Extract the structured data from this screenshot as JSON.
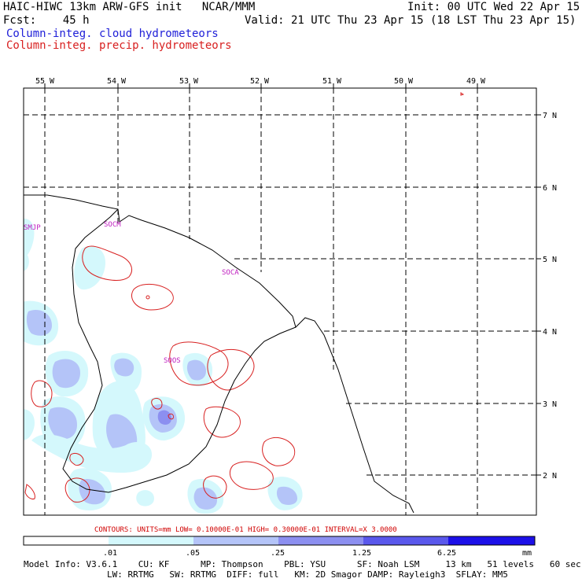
{
  "header": {
    "line1_left": "HAIC-HIWC 13km ARW-GFS init   NCAR/MMM",
    "line1_right": "Init: 00 UTC Wed 22 Apr 15",
    "line2_left": "Fcst:    45 h",
    "line2_right": "Valid: 21 UTC Thu 23 Apr 15 (18 LST Thu 23 Apr 15)",
    "field_cloud": "Column-integ. cloud hydrometeors",
    "field_precip": "Column-integ. precip. hydrometeors"
  },
  "map": {
    "lon_labels": [
      "55 W",
      "54 W",
      "53 W",
      "52 W",
      "51 W",
      "50 W",
      "49 W"
    ],
    "lat_labels": [
      "7 N",
      "6 N",
      "5 N",
      "4 N",
      "3 N",
      "2 N"
    ],
    "stations": [
      "SMJP",
      "SOCM",
      "SOCA",
      "SOOS"
    ]
  },
  "contour_note": "CONTOURS:  UNITS=mm  LOW= 0.10000E-01  HIGH= 0.30000E-01  INTERVAL=X  3.0000",
  "colorbar": {
    "ticks": [
      ".01",
      ".05",
      ".25",
      "1.25",
      "6.25"
    ],
    "units": "mm",
    "colors": [
      "#ffffff",
      "#d4f8fc",
      "#b4c4f8",
      "#8c8ff0",
      "#5a58ec",
      "#1c10e8"
    ]
  },
  "model_info": {
    "line1": "Model Info: V3.6.1    CU: KF      MP: Thompson    PBL: YSU      SF: Noah LSM     13 km   51 levels   60 sec",
    "line2": "                LW: RRTMG   SW: RRTMG  DIFF: full   KM: 2D Smagor DAMP: Rayleigh3  SFLAY: MM5"
  },
  "colors": {
    "cloud_light": "#d4f8fc",
    "cloud_mid": "#b4c4f8",
    "cloud_dark": "#8c8ff0",
    "precip_contour": "#d82020",
    "station_label": "#c020c0"
  }
}
